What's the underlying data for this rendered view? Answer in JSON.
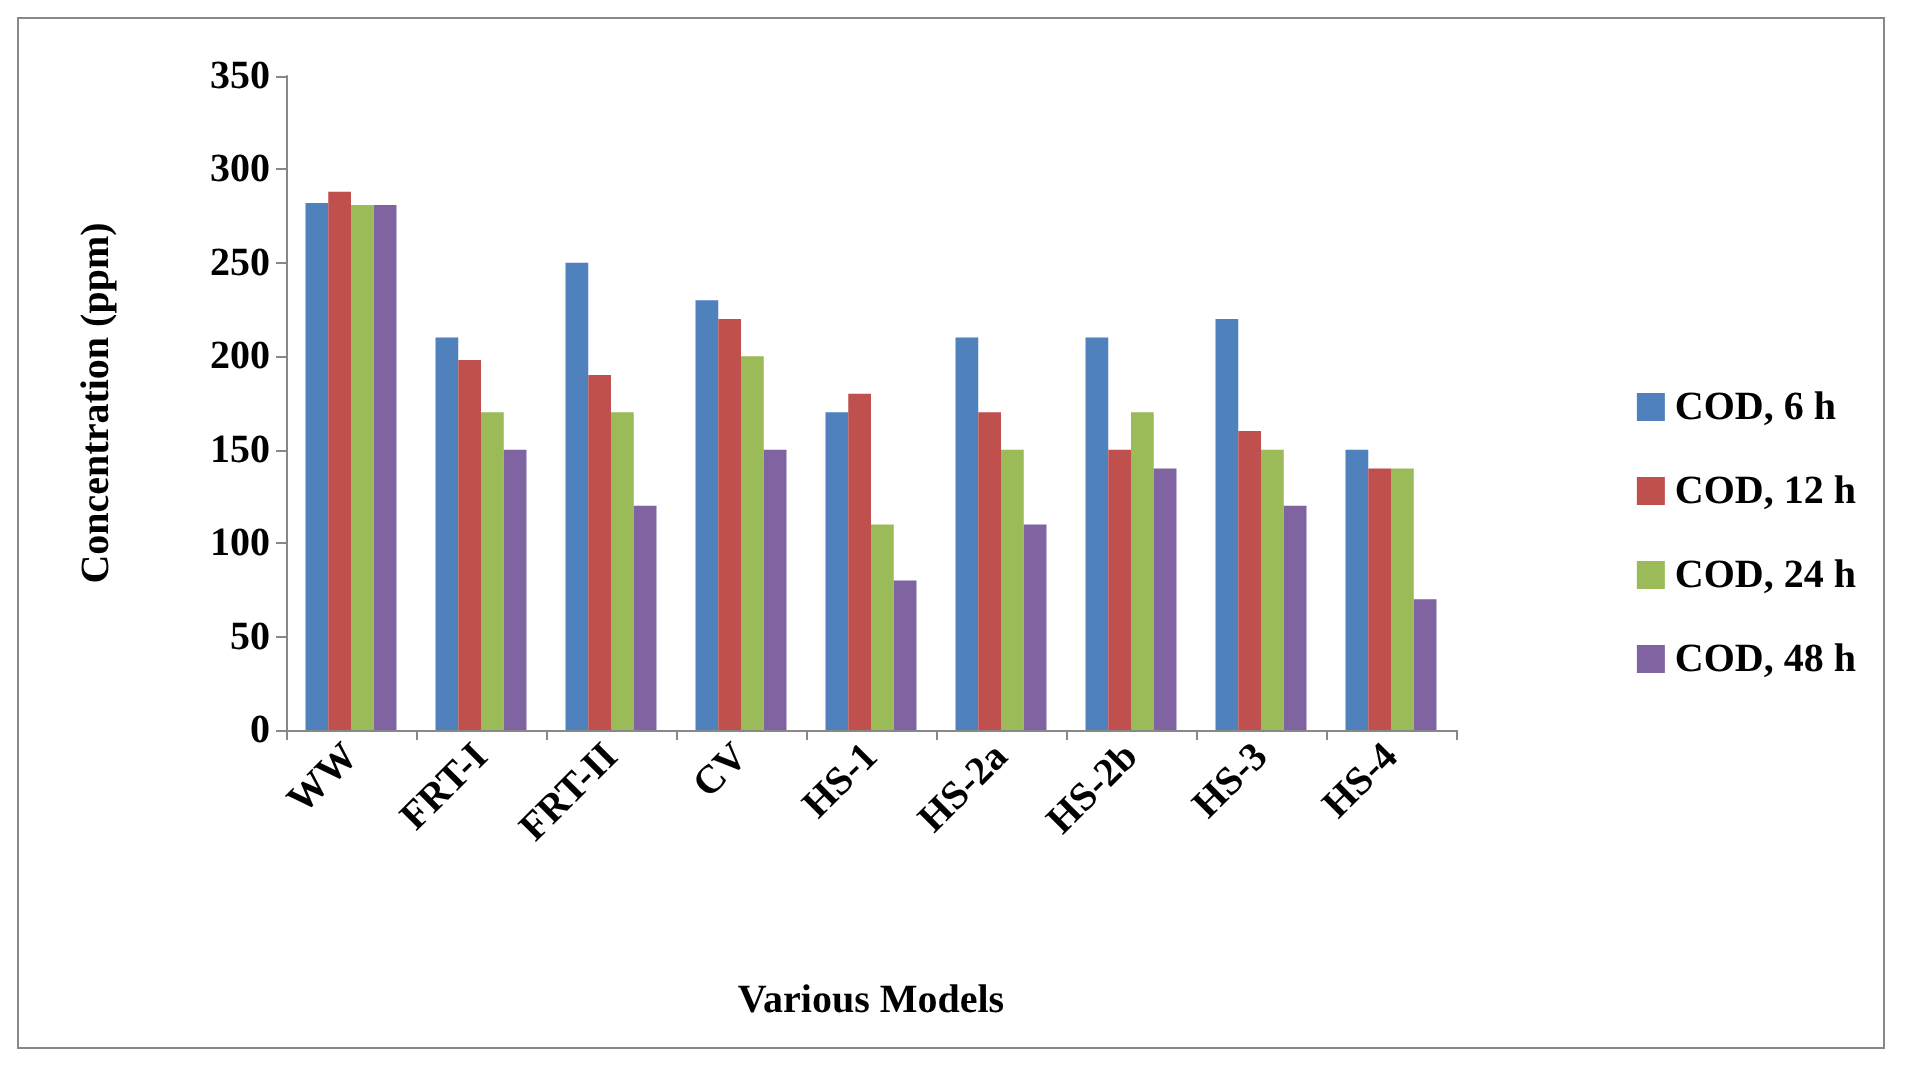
{
  "chart_data": {
    "type": "bar",
    "xlabel": "Various Models",
    "ylabel": "Concentration (ppm)",
    "categories": [
      "WW",
      "FRT-I",
      "FRT-II",
      "CV",
      "HS-1",
      "HS-2a",
      "HS-2b",
      "HS-3",
      "HS-4"
    ],
    "series": [
      {
        "name": "COD, 6 h",
        "color": "#4f81bd",
        "values": [
          282,
          210,
          250,
          230,
          170,
          210,
          210,
          220,
          150
        ]
      },
      {
        "name": "COD, 12 h",
        "color": "#c0504d",
        "values": [
          288,
          198,
          190,
          220,
          180,
          170,
          150,
          160,
          140
        ]
      },
      {
        "name": "COD, 24 h",
        "color": "#9bbb59",
        "values": [
          281,
          170,
          170,
          200,
          110,
          150,
          170,
          150,
          140
        ]
      },
      {
        "name": "COD, 48 h",
        "color": "#8064a2",
        "values": [
          281,
          150,
          120,
          150,
          80,
          110,
          140,
          120,
          70
        ]
      }
    ],
    "ylim": [
      0,
      350
    ],
    "yticks": [
      0,
      50,
      100,
      150,
      200,
      250,
      300,
      350
    ],
    "grid": false,
    "legend": "right"
  }
}
